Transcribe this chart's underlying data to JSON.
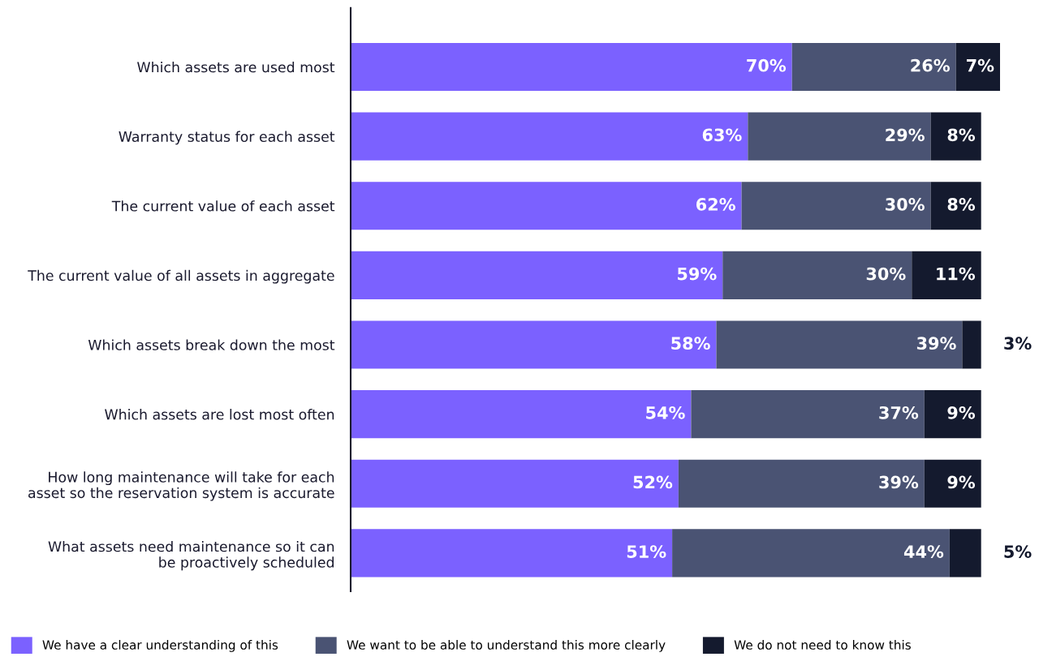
{
  "chart_data": {
    "type": "bar",
    "orientation": "horizontal",
    "stacked": true,
    "legend": "bottom",
    "grid": false,
    "categories": [
      "Which assets are used most",
      "Warranty status for each asset",
      "The current value of each asset",
      "The current value of all assets in aggregate",
      "Which assets break down the most",
      "Which assets are lost most often",
      "How long maintenance will take for each\nasset so the reservation system is accurate",
      "What assets need maintenance so it can\nbe proactively scheduled"
    ],
    "series": [
      {
        "name": "We have a clear understanding of this",
        "color": "#7b61ff",
        "values": [
          70,
          63,
          62,
          59,
          58,
          54,
          52,
          51
        ],
        "value_labels": [
          "70%",
          "63%",
          "62%",
          "59%",
          "58%",
          "54%",
          "52%",
          "51%"
        ]
      },
      {
        "name": "We want to be able to understand this more clearly",
        "color": "#4a5373",
        "values": [
          26,
          29,
          30,
          30,
          39,
          37,
          39,
          44
        ],
        "value_labels": [
          "26%",
          "29%",
          "30%",
          "30%",
          "39%",
          "37%",
          "39%",
          "44%"
        ]
      },
      {
        "name": "We do not need to know this",
        "color": "#141a2e",
        "values": [
          7,
          8,
          8,
          11,
          3,
          9,
          9,
          5
        ],
        "value_labels": [
          "7%",
          "8%",
          "8%",
          "11%",
          "3%",
          "9%",
          "9%",
          "5%"
        ]
      }
    ]
  }
}
